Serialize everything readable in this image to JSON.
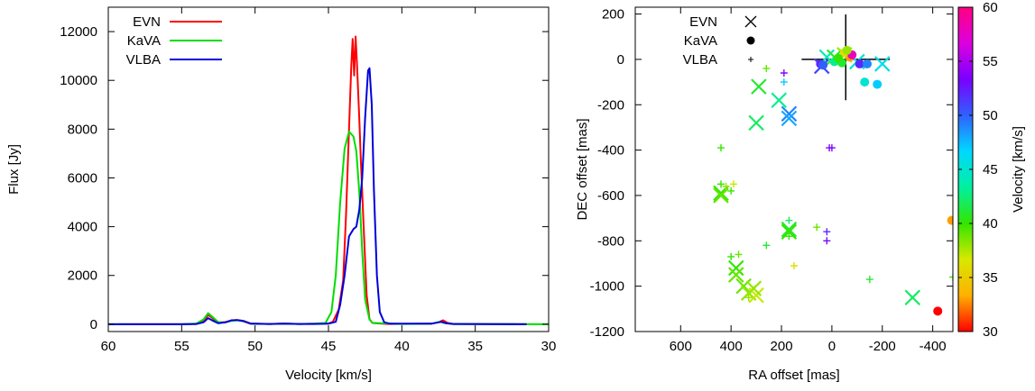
{
  "chart_data": [
    {
      "type": "line",
      "xlabel": "Velocity [km/s]",
      "ylabel": "Flux [Jy]",
      "xlim": [
        60,
        30
      ],
      "ylim": [
        -300,
        13000
      ],
      "xticks": [
        "60",
        "55",
        "50",
        "45",
        "40",
        "35",
        "30"
      ],
      "yticks": [
        "0",
        "2000",
        "4000",
        "6000",
        "8000",
        "10000",
        "12000"
      ],
      "xtick_values": [
        60,
        55,
        50,
        45,
        40,
        35,
        30
      ],
      "ytick_values": [
        0,
        2000,
        4000,
        6000,
        8000,
        10000,
        12000
      ],
      "legend": "top-left",
      "grid": false,
      "series": [
        {
          "name": "EVN",
          "color": "#ff0000",
          "points": [
            [
              59.3,
              0
            ],
            [
              55,
              0
            ],
            [
              54,
              10
            ],
            [
              53.5,
              120
            ],
            [
              53.2,
              380
            ],
            [
              52.9,
              250
            ],
            [
              52.5,
              60
            ],
            [
              52,
              90
            ],
            [
              51.6,
              150
            ],
            [
              51.2,
              170
            ],
            [
              50.8,
              140
            ],
            [
              50.3,
              30
            ],
            [
              49,
              10
            ],
            [
              48,
              30
            ],
            [
              47,
              10
            ],
            [
              46,
              20
            ],
            [
              45,
              30
            ],
            [
              44.7,
              100
            ],
            [
              44.3,
              600
            ],
            [
              44,
              1800
            ],
            [
              43.8,
              4500
            ],
            [
              43.6,
              8000
            ],
            [
              43.45,
              10500
            ],
            [
              43.35,
              11700
            ],
            [
              43.25,
              10200
            ],
            [
              43.15,
              11800
            ],
            [
              43.05,
              10600
            ],
            [
              42.9,
              8400
            ],
            [
              42.8,
              6800
            ],
            [
              42.6,
              4000
            ],
            [
              42.4,
              1200
            ],
            [
              42.2,
              200
            ],
            [
              42,
              50
            ],
            [
              41,
              10
            ],
            [
              38,
              20
            ],
            [
              37.5,
              80
            ],
            [
              37.2,
              160
            ],
            [
              36.9,
              60
            ],
            [
              36.5,
              10
            ],
            [
              31.5,
              0
            ]
          ]
        },
        {
          "name": "KaVA",
          "color": "#00dd00",
          "points": [
            [
              60,
              0
            ],
            [
              58.5,
              0
            ],
            [
              55,
              0
            ],
            [
              54,
              30
            ],
            [
              53.5,
              200
            ],
            [
              53.2,
              450
            ],
            [
              52.9,
              300
            ],
            [
              52.5,
              80
            ],
            [
              52,
              80
            ],
            [
              51.6,
              140
            ],
            [
              51.2,
              160
            ],
            [
              50.8,
              120
            ],
            [
              50.3,
              20
            ],
            [
              49,
              10
            ],
            [
              48,
              20
            ],
            [
              47,
              10
            ],
            [
              46,
              20
            ],
            [
              45.2,
              50
            ],
            [
              44.8,
              500
            ],
            [
              44.5,
              2000
            ],
            [
              44.2,
              5000
            ],
            [
              43.9,
              7200
            ],
            [
              43.6,
              7900
            ],
            [
              43.3,
              7700
            ],
            [
              43.1,
              7100
            ],
            [
              42.9,
              5400
            ],
            [
              42.7,
              3000
            ],
            [
              42.5,
              1000
            ],
            [
              42.2,
              200
            ],
            [
              42,
              50
            ],
            [
              40,
              10
            ],
            [
              38,
              20
            ],
            [
              37.4,
              100
            ],
            [
              37.1,
              50
            ],
            [
              36.5,
              10
            ],
            [
              30,
              0
            ]
          ]
        },
        {
          "name": "VLBA",
          "color": "#0000dd",
          "points": [
            [
              60,
              0
            ],
            [
              55,
              0
            ],
            [
              54,
              10
            ],
            [
              53.5,
              80
            ],
            [
              53.2,
              250
            ],
            [
              52.9,
              150
            ],
            [
              52.5,
              40
            ],
            [
              52,
              80
            ],
            [
              51.6,
              160
            ],
            [
              51.2,
              170
            ],
            [
              50.8,
              130
            ],
            [
              50.3,
              20
            ],
            [
              49,
              10
            ],
            [
              48,
              20
            ],
            [
              47,
              10
            ],
            [
              46,
              10
            ],
            [
              45,
              20
            ],
            [
              44.5,
              100
            ],
            [
              44.2,
              800
            ],
            [
              43.9,
              2000
            ],
            [
              43.6,
              3600
            ],
            [
              43.3,
              3900
            ],
            [
              43.1,
              4000
            ],
            [
              42.9,
              4700
            ],
            [
              42.7,
              6000
            ],
            [
              42.5,
              8500
            ],
            [
              42.3,
              10400
            ],
            [
              42.2,
              10500
            ],
            [
              42.05,
              9000
            ],
            [
              41.9,
              5500
            ],
            [
              41.7,
              2000
            ],
            [
              41.5,
              500
            ],
            [
              41.2,
              80
            ],
            [
              40.8,
              20
            ],
            [
              38,
              20
            ],
            [
              37.3,
              100
            ],
            [
              37,
              40
            ],
            [
              36.5,
              10
            ],
            [
              31.5,
              0
            ]
          ]
        }
      ]
    },
    {
      "type": "scatter",
      "xlabel": "RA offset [mas]",
      "ylabel": "DEC offset [mas]",
      "xlim": [
        780,
        -480
      ],
      "ylim": [
        -1200,
        230
      ],
      "xticks": [
        "600",
        "400",
        "200",
        "0",
        "-200",
        "-400"
      ],
      "yticks": [
        "-1200",
        "-1000",
        "-800",
        "-600",
        "-400",
        "-200",
        "0",
        "200"
      ],
      "xtick_values": [
        600,
        400,
        200,
        0,
        -200,
        -400
      ],
      "ytick_values": [
        -1200,
        -1000,
        -800,
        -600,
        -400,
        -200,
        0,
        200
      ],
      "legend": "top-left",
      "legend_entries": [
        {
          "label": "EVN",
          "marker": "x"
        },
        {
          "label": "KaVA",
          "marker": "dot"
        },
        {
          "label": "VLBA",
          "marker": "plus"
        }
      ],
      "colorbar": {
        "label": "Velocity [km/s]",
        "range": [
          30,
          60
        ],
        "ticks": [
          "30",
          "35",
          "40",
          "45",
          "50",
          "55",
          "60"
        ],
        "tick_values": [
          30,
          35,
          40,
          45,
          50,
          55,
          60
        ],
        "colors": [
          "#ff0000",
          "#ffb000",
          "#d8e800",
          "#33e600",
          "#00f0a0",
          "#00d8ff",
          "#3060ff",
          "#7a00ff",
          "#dd00e0",
          "#ff0080"
        ]
      },
      "crosshair": {
        "x": -55,
        "y": 0
      },
      "series": [
        {
          "name": "EVN",
          "marker": "x",
          "points": [
            [
              40,
              -30,
              51
            ],
            [
              -100,
              -10,
              45
            ],
            [
              -200,
              -20,
              46
            ],
            [
              20,
              10,
              44
            ],
            [
              -10,
              10,
              41
            ],
            [
              -50,
              20,
              38
            ],
            [
              290,
              -120,
              41
            ],
            [
              210,
              -180,
              43
            ],
            [
              170,
              -240,
              49
            ],
            [
              170,
              -260,
              48
            ],
            [
              300,
              -280,
              42
            ],
            [
              440,
              -590,
              40
            ],
            [
              440,
              -600,
              39
            ],
            [
              170,
              -750,
              41
            ],
            [
              170,
              -760,
              40
            ],
            [
              380,
              -920,
              40
            ],
            [
              380,
              -950,
              39
            ],
            [
              350,
              -1000,
              39
            ],
            [
              330,
              -1030,
              38
            ],
            [
              300,
              -1040,
              37
            ],
            [
              310,
              -1010,
              38
            ],
            [
              -320,
              -1050,
              42
            ]
          ]
        },
        {
          "name": "KaVA",
          "marker": "dot",
          "points": [
            [
              45,
              -20,
              52
            ],
            [
              35,
              -25,
              50
            ],
            [
              -10,
              -10,
              43
            ],
            [
              -40,
              -15,
              41
            ],
            [
              -70,
              10,
              33
            ],
            [
              -50,
              30,
              36
            ],
            [
              -80,
              20,
              58
            ],
            [
              -110,
              -20,
              52
            ],
            [
              -140,
              -20,
              49
            ],
            [
              -60,
              40,
              38
            ],
            [
              -25,
              5,
              40
            ],
            [
              -130,
              -100,
              45
            ],
            [
              -180,
              -110,
              47
            ],
            [
              -475,
              -710,
              33
            ],
            [
              -420,
              -1110,
              30
            ]
          ]
        },
        {
          "name": "VLBA",
          "marker": "plus",
          "points": [
            [
              260,
              -40,
              39
            ],
            [
              190,
              -60,
              54
            ],
            [
              190,
              -100,
              47
            ],
            [
              440,
              -390,
              40
            ],
            [
              10,
              -390,
              54
            ],
            [
              0,
              -390,
              53
            ],
            [
              440,
              -550,
              40
            ],
            [
              420,
              -560,
              38
            ],
            [
              400,
              -580,
              40
            ],
            [
              390,
              -550,
              37
            ],
            [
              170,
              -710,
              42
            ],
            [
              60,
              -740,
              39
            ],
            [
              20,
              -760,
              52
            ],
            [
              20,
              -800,
              53
            ],
            [
              260,
              -820,
              41
            ],
            [
              170,
              -780,
              40
            ],
            [
              370,
              -860,
              39
            ],
            [
              400,
              -870,
              40
            ],
            [
              150,
              -910,
              36
            ],
            [
              -150,
              -970,
              41
            ],
            [
              -480,
              -960,
              40
            ],
            [
              330,
              -1050,
              38
            ]
          ]
        }
      ]
    }
  ]
}
